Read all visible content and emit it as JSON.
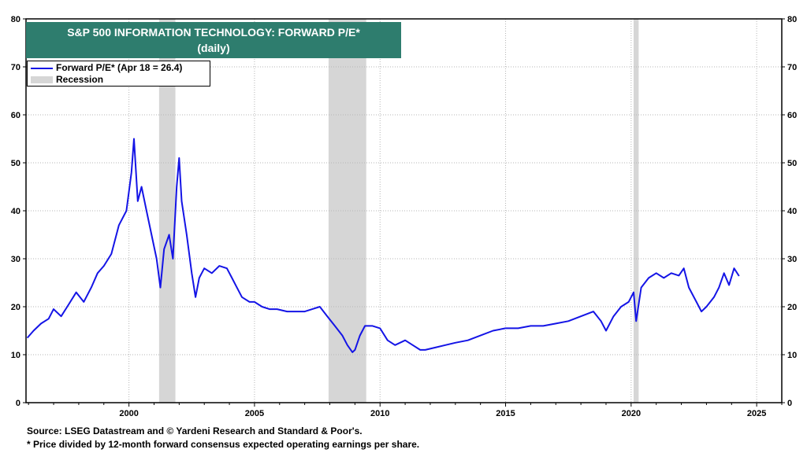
{
  "chart_data": {
    "type": "line",
    "title": "S&P 500 INFORMATION TECHNOLOGY: FORWARD P/E*",
    "subtitle": "(daily)",
    "xlabel": "",
    "ylabel": "",
    "xlim": [
      1995.9,
      2026.0
    ],
    "ylim": [
      0,
      80
    ],
    "y_ticks": [
      0,
      10,
      20,
      30,
      40,
      50,
      60,
      70,
      80
    ],
    "x_ticks": [
      2000,
      2005,
      2010,
      2015,
      2020,
      2025
    ],
    "grid": true,
    "legend_position": "top-left",
    "series": [
      {
        "name": "Forward P/E* (Apr 18 = 26.4)",
        "color": "#1414e6",
        "x": [
          1995.95,
          1996.2,
          1996.5,
          1996.8,
          1997.0,
          1997.3,
          1997.6,
          1997.9,
          1998.2,
          1998.5,
          1998.75,
          1999.0,
          1999.3,
          1999.6,
          1999.9,
          2000.1,
          2000.2,
          2000.35,
          2000.5,
          2000.7,
          2000.9,
          2001.1,
          2001.25,
          2001.4,
          2001.6,
          2001.75,
          2001.9,
          2002.0,
          2002.1,
          2002.3,
          2002.5,
          2002.65,
          2002.8,
          2003.0,
          2003.3,
          2003.6,
          2003.9,
          2004.1,
          2004.3,
          2004.5,
          2004.8,
          2005.0,
          2005.3,
          2005.6,
          2005.9,
          2006.3,
          2006.7,
          2007.0,
          2007.3,
          2007.6,
          2007.9,
          2008.2,
          2008.5,
          2008.7,
          2008.9,
          2009.0,
          2009.2,
          2009.4,
          2009.7,
          2010.0,
          2010.3,
          2010.6,
          2011.0,
          2011.3,
          2011.6,
          2011.8,
          2012.2,
          2012.6,
          2013.0,
          2013.5,
          2014.0,
          2014.5,
          2015.0,
          2015.5,
          2016.0,
          2016.5,
          2017.0,
          2017.5,
          2018.0,
          2018.5,
          2018.8,
          2019.0,
          2019.3,
          2019.6,
          2019.9,
          2020.1,
          2020.2,
          2020.4,
          2020.7,
          2021.0,
          2021.3,
          2021.6,
          2021.9,
          2022.1,
          2022.3,
          2022.6,
          2022.8,
          2023.0,
          2023.3,
          2023.5,
          2023.7,
          2023.9,
          2024.1,
          2024.3
        ],
        "values": [
          13.5,
          15.0,
          16.5,
          17.5,
          19.5,
          18.0,
          20.5,
          23.0,
          21.0,
          24.0,
          27.0,
          28.5,
          31.0,
          37.0,
          40.0,
          48.0,
          55.0,
          42.0,
          45.0,
          40.0,
          35.0,
          30.0,
          24.0,
          32.0,
          35.0,
          30.0,
          45.0,
          51.0,
          42.0,
          35.0,
          27.0,
          22.0,
          26.0,
          28.0,
          27.0,
          28.5,
          28.0,
          26.0,
          24.0,
          22.0,
          21.0,
          21.0,
          20.0,
          19.5,
          19.5,
          19.0,
          19.0,
          19.0,
          19.5,
          20.0,
          18.0,
          16.0,
          14.0,
          12.0,
          10.5,
          11.0,
          14.0,
          16.0,
          16.0,
          15.5,
          13.0,
          12.0,
          13.0,
          12.0,
          11.0,
          11.0,
          11.5,
          12.0,
          12.5,
          13.0,
          14.0,
          15.0,
          15.5,
          15.5,
          16.0,
          16.0,
          16.5,
          17.0,
          18.0,
          19.0,
          17.0,
          15.0,
          18.0,
          20.0,
          21.0,
          23.0,
          17.0,
          24.0,
          26.0,
          27.0,
          26.0,
          27.0,
          26.5,
          28.0,
          24.0,
          21.0,
          19.0,
          20.0,
          22.0,
          24.0,
          27.0,
          24.5,
          28.0,
          26.4
        ]
      }
    ],
    "shaded_regions": [
      {
        "name": "Recession",
        "color": "#d6d6d6",
        "from": 2001.2,
        "to": 2001.85
      },
      {
        "name": "Recession",
        "color": "#d6d6d6",
        "from": 2007.95,
        "to": 2009.45
      },
      {
        "name": "Recession",
        "color": "#d6d6d6",
        "from": 2020.1,
        "to": 2020.3
      }
    ]
  },
  "legend": {
    "line_label": "Forward P/E* (Apr 18 = 26.4)",
    "shade_label": "Recession"
  },
  "footnotes": {
    "source": "Source: LSEG Datastream and © Yardeni Research and Standard & Poor's.",
    "note": "* Price divided by 12-month forward consensus expected operating earnings per share."
  }
}
